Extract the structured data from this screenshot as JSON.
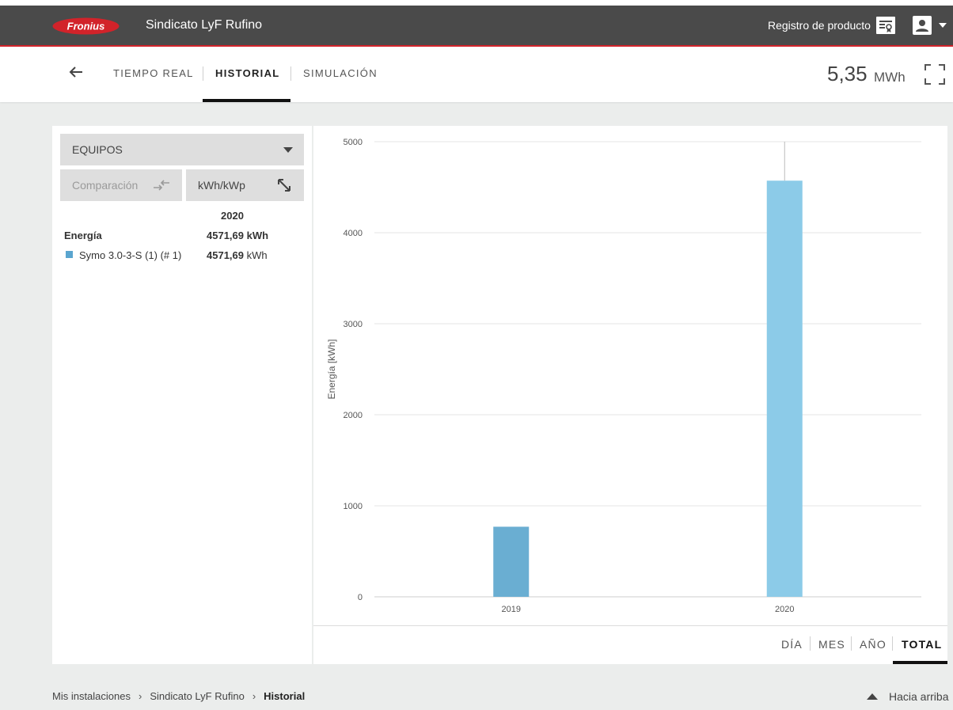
{
  "header": {
    "logo_text": "Fronius",
    "site_title": "Sindicato LyF Rufino",
    "product_registration": "Registro de producto",
    "colors": {
      "bar": "#4a4a4a",
      "accent": "#d2232a"
    }
  },
  "nav": {
    "tabs": [
      {
        "label": "TIEMPO REAL",
        "active": false
      },
      {
        "label": "HISTORIAL",
        "active": true
      },
      {
        "label": "SIMULACIÓN",
        "active": false
      }
    ],
    "total_value": "5,35",
    "total_unit": "MWh"
  },
  "sidebar": {
    "devices_dropdown": "EQUIPOS",
    "comparison_button": "Comparación",
    "normalize_button": "kWh/kWp",
    "year_header": "2020",
    "rows": [
      {
        "label": "Energía",
        "value": "4571,69",
        "unit": "kWh"
      },
      {
        "label": "Symo 3.0-3-S (1) (# 1)",
        "value": "4571,69",
        "unit": "kWh",
        "color": "#5aa5cf"
      }
    ]
  },
  "chart_data": {
    "type": "bar",
    "categories": [
      "2019",
      "2020"
    ],
    "series": [
      {
        "values": [
          770,
          4571.69
        ]
      }
    ],
    "bar_colors": [
      "#6aaed2",
      "#8ccbe8"
    ],
    "ylabel": "Energía [kWh]",
    "xlabel": "",
    "ylim": [
      0,
      5000
    ],
    "yticks": [
      0,
      1000,
      2000,
      3000,
      4000,
      5000
    ],
    "grid": true
  },
  "period_buttons": [
    {
      "label": "DÍA",
      "active": false
    },
    {
      "label": "MES",
      "active": false
    },
    {
      "label": "AÑO",
      "active": false
    },
    {
      "label": "TOTAL",
      "active": true
    }
  ],
  "breadcrumb": {
    "items": [
      "Mis instalaciones",
      "Sindicato LyF Rufino"
    ],
    "current": "Historial",
    "separator": "›"
  },
  "back_to_top": "Hacia arriba"
}
